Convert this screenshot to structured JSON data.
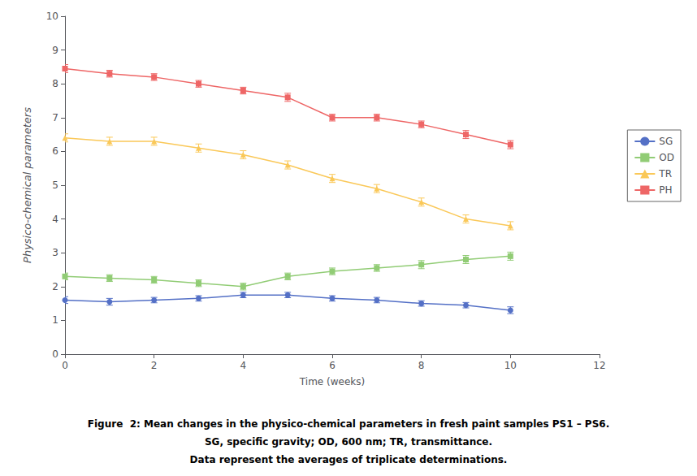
{
  "chart_data": {
    "type": "line",
    "x": [
      0,
      1,
      2,
      3,
      4,
      5,
      6,
      7,
      8,
      9,
      10
    ],
    "xlabel": "Time (weeks)",
    "ylabel": "Physico-chemical parameters",
    "annotations": [
      "Figure  2: Mean changes in the physico-chemical parameters in fresh paint samples PS1 – PS6.",
      "SG, specific gravity; OD, 600 nm; TR, transmittance.",
      "Data represent the averages of triplicate determinations."
    ],
    "series": [
      {
        "name": "SG",
        "marker": "circle",
        "values": [
          1.6,
          1.55,
          1.6,
          1.65,
          1.75,
          1.75,
          1.65,
          1.6,
          1.5,
          1.45,
          1.3
        ],
        "errors": [
          0.1,
          0.1,
          0.08,
          0.08,
          0.08,
          0.08,
          0.08,
          0.08,
          0.08,
          0.08,
          0.1
        ]
      },
      {
        "name": "OD",
        "marker": "square",
        "values": [
          2.3,
          2.25,
          2.2,
          2.1,
          2.0,
          2.3,
          2.45,
          2.55,
          2.65,
          2.8,
          2.9
        ],
        "errors": [
          0.1,
          0.1,
          0.1,
          0.1,
          0.1,
          0.1,
          0.1,
          0.1,
          0.12,
          0.12,
          0.12
        ]
      },
      {
        "name": "TR",
        "marker": "triangle",
        "values": [
          6.4,
          6.3,
          6.3,
          6.1,
          5.9,
          5.6,
          5.2,
          4.9,
          4.5,
          4.0,
          3.8
        ],
        "errors": [
          0.12,
          0.12,
          0.12,
          0.12,
          0.12,
          0.12,
          0.12,
          0.12,
          0.12,
          0.12,
          0.12
        ]
      },
      {
        "name": "PH",
        "marker": "square",
        "values": [
          8.45,
          8.3,
          8.2,
          8.0,
          7.8,
          7.6,
          7.0,
          7.0,
          6.8,
          6.5,
          6.2
        ],
        "errors": [
          0.12,
          0.1,
          0.1,
          0.1,
          0.1,
          0.12,
          0.1,
          0.1,
          0.1,
          0.12,
          0.12
        ]
      }
    ],
    "xlim": [
      0,
      12
    ],
    "xticks": [
      0,
      2,
      4,
      6,
      8,
      10,
      12
    ],
    "ylim": [
      0,
      10
    ],
    "yticks": [
      0,
      1,
      2,
      3,
      4,
      5,
      6,
      7,
      8,
      9,
      10
    ],
    "grid": false,
    "legend": "right"
  }
}
